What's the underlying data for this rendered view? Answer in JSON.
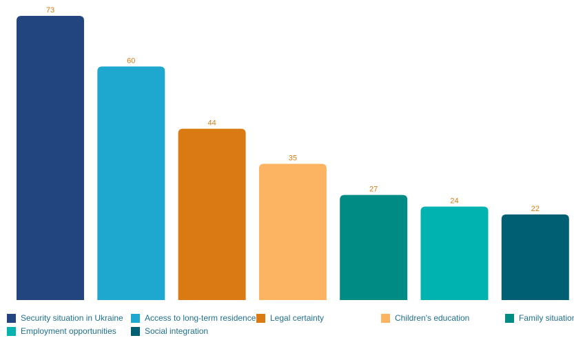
{
  "chart_data": {
    "type": "bar",
    "categories": [
      "Security situation in Ukraine",
      "Access to long-term residence",
      "Legal certainty",
      "Children's education",
      "Family situation",
      "Employment opportunities",
      "Social integration"
    ],
    "values": [
      73,
      60,
      44,
      35,
      27,
      24,
      22
    ],
    "colors": [
      "#22457f",
      "#1fa8cf",
      "#d97b12",
      "#fdb462",
      "#008b84",
      "#00b3b0",
      "#005f73"
    ],
    "ylim": [
      0,
      75
    ],
    "grid": false,
    "legend_position": "bottom",
    "label_color": "#d97b12"
  }
}
